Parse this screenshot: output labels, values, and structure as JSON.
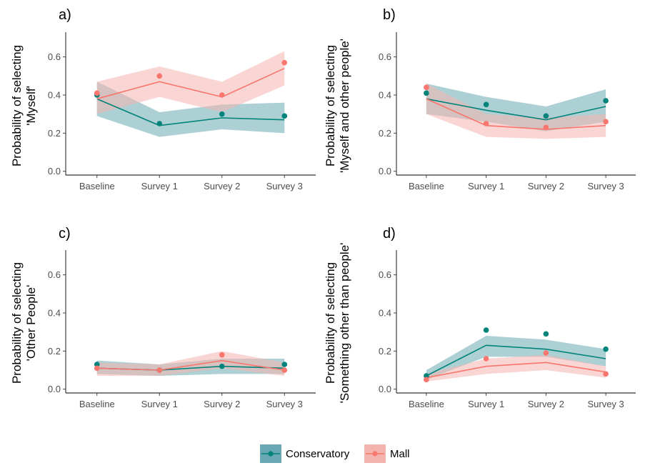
{
  "chart_data": [
    {
      "type": "line",
      "panel_label": "a)",
      "ylabel_lines": [
        "Probability of selecting",
        "'Myself'"
      ],
      "categories": [
        "Baseline",
        "Survey 1",
        "Survey 2",
        "Survey 3"
      ],
      "ylim": [
        -0.02,
        0.73
      ],
      "yticks": [
        "0.0",
        "0.2",
        "0.4",
        "0.6"
      ],
      "series": [
        {
          "name": "Conservatory",
          "color": "#00837a",
          "band_color": "#6aa9b3",
          "points": [
            0.4,
            0.25,
            0.3,
            0.29
          ],
          "fit": [
            0.38,
            0.24,
            0.28,
            0.27
          ],
          "lower": [
            0.29,
            0.18,
            0.22,
            0.2
          ],
          "upper": [
            0.47,
            0.31,
            0.35,
            0.36
          ]
        },
        {
          "name": "Mall",
          "color": "#f8766d",
          "band_color": "#f4b4ae",
          "points": [
            0.41,
            0.5,
            0.4,
            0.57
          ],
          "fit": [
            0.38,
            0.47,
            0.39,
            0.54
          ],
          "lower": [
            0.3,
            0.39,
            0.31,
            0.45
          ],
          "upper": [
            0.47,
            0.55,
            0.47,
            0.63
          ]
        }
      ]
    },
    {
      "type": "line",
      "panel_label": "b)",
      "ylabel_lines": [
        "Probability of selecting",
        "'Myself and other people'"
      ],
      "categories": [
        "Baseline",
        "Survey 1",
        "Survey 2",
        "Survey 3"
      ],
      "ylim": [
        -0.02,
        0.73
      ],
      "yticks": [
        "0.0",
        "0.2",
        "0.4",
        "0.6"
      ],
      "series": [
        {
          "name": "Conservatory",
          "color": "#00837a",
          "band_color": "#6aa9b3",
          "points": [
            0.41,
            0.35,
            0.29,
            0.37
          ],
          "fit": [
            0.38,
            0.32,
            0.27,
            0.34
          ],
          "lower": [
            0.3,
            0.26,
            0.21,
            0.26
          ],
          "upper": [
            0.46,
            0.39,
            0.34,
            0.43
          ]
        },
        {
          "name": "Mall",
          "color": "#f8766d",
          "band_color": "#f4b4ae",
          "points": [
            0.44,
            0.25,
            0.23,
            0.26
          ],
          "fit": [
            0.38,
            0.24,
            0.22,
            0.24
          ],
          "lower": [
            0.3,
            0.18,
            0.17,
            0.18
          ],
          "upper": [
            0.46,
            0.3,
            0.28,
            0.3
          ]
        }
      ]
    },
    {
      "type": "line",
      "panel_label": "c)",
      "ylabel_lines": [
        "Probability of selecting",
        "'Other People'"
      ],
      "categories": [
        "Baseline",
        "Survey 1",
        "Survey 2",
        "Survey 3"
      ],
      "ylim": [
        -0.02,
        0.73
      ],
      "yticks": [
        "0.0",
        "0.2",
        "0.4",
        "0.6"
      ],
      "series": [
        {
          "name": "Conservatory",
          "color": "#00837a",
          "band_color": "#6aa9b3",
          "points": [
            0.13,
            0.1,
            0.12,
            0.13
          ],
          "fit": [
            0.11,
            0.1,
            0.12,
            0.11
          ],
          "lower": [
            0.08,
            0.07,
            0.08,
            0.08
          ],
          "upper": [
            0.15,
            0.13,
            0.16,
            0.16
          ]
        },
        {
          "name": "Mall",
          "color": "#f8766d",
          "band_color": "#f4b4ae",
          "points": [
            0.11,
            0.1,
            0.18,
            0.1
          ],
          "fit": [
            0.11,
            0.1,
            0.15,
            0.1
          ],
          "lower": [
            0.07,
            0.07,
            0.11,
            0.07
          ],
          "upper": [
            0.14,
            0.13,
            0.2,
            0.14
          ]
        }
      ]
    },
    {
      "type": "line",
      "panel_label": "d)",
      "ylabel_lines": [
        "Probability of selecting",
        "'Something other than people'"
      ],
      "categories": [
        "Baseline",
        "Survey 1",
        "Survey 2",
        "Survey 3"
      ],
      "ylim": [
        -0.02,
        0.73
      ],
      "yticks": [
        "0.0",
        "0.2",
        "0.4",
        "0.6"
      ],
      "series": [
        {
          "name": "Conservatory",
          "color": "#00837a",
          "band_color": "#6aa9b3",
          "points": [
            0.07,
            0.31,
            0.29,
            0.21
          ],
          "fit": [
            0.07,
            0.23,
            0.21,
            0.16
          ],
          "lower": [
            0.05,
            0.17,
            0.17,
            0.12
          ],
          "upper": [
            0.1,
            0.28,
            0.26,
            0.21
          ]
        },
        {
          "name": "Mall",
          "color": "#f8766d",
          "band_color": "#f4b4ae",
          "points": [
            0.05,
            0.16,
            0.19,
            0.08
          ],
          "fit": [
            0.06,
            0.12,
            0.14,
            0.09
          ],
          "lower": [
            0.04,
            0.08,
            0.1,
            0.06
          ],
          "upper": [
            0.08,
            0.16,
            0.18,
            0.12
          ]
        }
      ]
    }
  ],
  "legend": {
    "placement": "bottom",
    "items": [
      {
        "name": "Conservatory",
        "color": "#00837a",
        "band_color": "#6aa9b3"
      },
      {
        "name": "Mall",
        "color": "#f8766d",
        "band_color": "#f4b4ae"
      }
    ]
  }
}
